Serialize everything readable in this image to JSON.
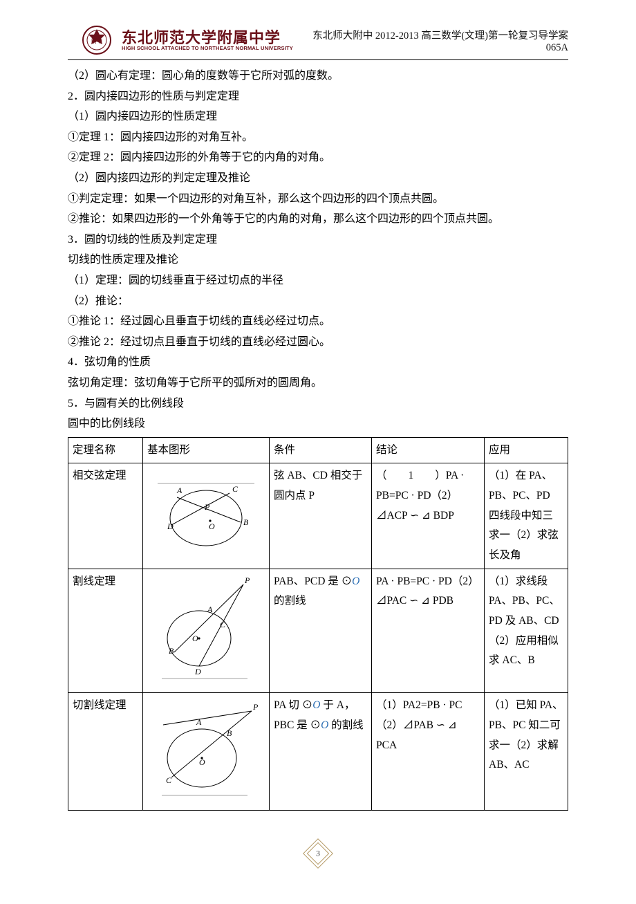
{
  "header": {
    "university_zh": "东北师范大学附属中学",
    "university_en": "HIGH SCHOOL ATTACHED TO NORTHEAST NORMAL UNIVERSITY",
    "logo_color": "#6a1019",
    "doc_title": "东北师大附中 2012-2013 高三数学(文理)第一轮复习导学案 065A"
  },
  "content": {
    "lines": [
      "（2）圆心有定理：圆心角的度数等于它所对弧的度数。",
      "2．圆内接四边形的性质与判定定理",
      "（1）圆内接四边形的性质定理",
      "①定理 1：圆内接四边形的对角互补。",
      "②定理 2：圆内接四边形的外角等于它的内角的对角。",
      "（2）圆内接四边形的判定定理及推论",
      "①判定定理：如果一个四边形的对角互补，那么这个四边形的四个顶点共圆。",
      "②推论：如果四边形的一个外角等于它的内角的对角，那么这个四边形的四个顶点共圆。",
      "3．圆的切线的性质及判定定理",
      "切线的性质定理及推论",
      "（1）定理：圆的切线垂直于经过切点的半径",
      "（2）推论：",
      "①推论 1：经过圆心且垂直于切线的直线必经过切点。",
      "②推论 2：经过切点且垂直于切线的直线必经过圆心。",
      "4．弦切角的性质",
      "弦切角定理：弦切角等于它所平的弧所对的圆周角。",
      "5．与圆有关的比例线段",
      "圆中的比例线段"
    ]
  },
  "table": {
    "columns": [
      "定理名称",
      "基本图形",
      "条件",
      "结论",
      "应用"
    ],
    "diagram": {
      "stroke": "#000000",
      "thin_stroke": "#444444",
      "stroke_width": 1,
      "font_size": 12,
      "circle_fill": "#ffffff"
    },
    "rows": [
      {
        "name": "相交弦定理",
        "condition": "弦 AB、CD 相交于圆内点 P",
        "conclusion": "（　　1　　）PA · PB=PC · PD（2）⊿ACP ∽ ⊿ BDP",
        "application": "（1）在 PA、PB、PC、PD 四线段中知三求一（2）求弦长及角",
        "figure": "intersecting"
      },
      {
        "name": "割线定理",
        "condition_html": "PAB、PCD 是 ⊙<span class=\"math-o\">O</span> 的割线",
        "conclusion": "PA · PB=PC · PD（2）⊿PAC ∽ ⊿ PDB",
        "application": "（1）求线段 PA、PB、PC、PD 及 AB、CD（2）应用相似求 AC、B",
        "figure": "secant"
      },
      {
        "name": "切割线定理",
        "condition_html": "PA 切 ⊙<span class=\"math-o\">O</span> 于 A，PBC 是 ⊙<span class=\"math-o\">O</span> 的割线",
        "conclusion": "（1）PA2=PB · PC（2）⊿PAB ∽ ⊿ PCA",
        "application": "（1）已知 PA、PB、PC 知二可求一（2）求解 AB、AC",
        "figure": "tangent-secant"
      }
    ]
  },
  "footer": {
    "page_number": "3",
    "frame_color": "#b59a66"
  }
}
